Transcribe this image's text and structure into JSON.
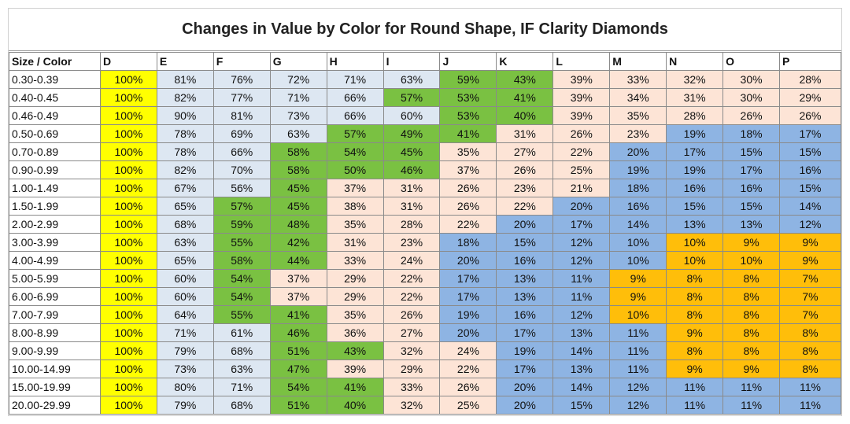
{
  "chart_data": {
    "type": "table",
    "title": "Changes in Value by Color for Round Shape, IF Clarity Diamonds",
    "header_corner": "Size / Color",
    "columns": [
      "D",
      "E",
      "F",
      "G",
      "H",
      "I",
      "J",
      "K",
      "L",
      "M",
      "N",
      "O",
      "P"
    ],
    "colors": {
      "yellow": "#ffff00",
      "lightblue": "#dde7f2",
      "green": "#7ac142",
      "peach": "#fde4d6",
      "blue": "#8eb4e3",
      "orange": "#ffbe0a"
    },
    "rows": [
      {
        "size": "0.30-0.39",
        "values": [
          "100%",
          "81%",
          "76%",
          "72%",
          "71%",
          "63%",
          "59%",
          "43%",
          "39%",
          "33%",
          "32%",
          "30%",
          "28%"
        ],
        "colors": [
          "yellow",
          "lightblue",
          "lightblue",
          "lightblue",
          "lightblue",
          "lightblue",
          "green",
          "green",
          "peach",
          "peach",
          "peach",
          "peach",
          "peach"
        ]
      },
      {
        "size": "0.40-0.45",
        "values": [
          "100%",
          "82%",
          "77%",
          "71%",
          "66%",
          "57%",
          "53%",
          "41%",
          "39%",
          "34%",
          "31%",
          "30%",
          "29%"
        ],
        "colors": [
          "yellow",
          "lightblue",
          "lightblue",
          "lightblue",
          "lightblue",
          "green",
          "green",
          "green",
          "peach",
          "peach",
          "peach",
          "peach",
          "peach"
        ]
      },
      {
        "size": "0.46-0.49",
        "values": [
          "100%",
          "90%",
          "81%",
          "73%",
          "66%",
          "60%",
          "53%",
          "40%",
          "39%",
          "35%",
          "28%",
          "26%",
          "26%"
        ],
        "colors": [
          "yellow",
          "lightblue",
          "lightblue",
          "lightblue",
          "lightblue",
          "lightblue",
          "green",
          "green",
          "peach",
          "peach",
          "peach",
          "peach",
          "peach"
        ]
      },
      {
        "size": "0.50-0.69",
        "values": [
          "100%",
          "78%",
          "69%",
          "63%",
          "57%",
          "49%",
          "41%",
          "31%",
          "26%",
          "23%",
          "19%",
          "18%",
          "17%"
        ],
        "colors": [
          "yellow",
          "lightblue",
          "lightblue",
          "lightblue",
          "green",
          "green",
          "green",
          "peach",
          "peach",
          "peach",
          "blue",
          "blue",
          "blue"
        ]
      },
      {
        "size": "0.70-0.89",
        "values": [
          "100%",
          "78%",
          "66%",
          "58%",
          "54%",
          "45%",
          "35%",
          "27%",
          "22%",
          "20%",
          "17%",
          "15%",
          "15%"
        ],
        "colors": [
          "yellow",
          "lightblue",
          "lightblue",
          "green",
          "green",
          "green",
          "peach",
          "peach",
          "peach",
          "blue",
          "blue",
          "blue",
          "blue"
        ]
      },
      {
        "size": "0.90-0.99",
        "values": [
          "100%",
          "82%",
          "70%",
          "58%",
          "50%",
          "46%",
          "37%",
          "26%",
          "25%",
          "19%",
          "19%",
          "17%",
          "16%"
        ],
        "colors": [
          "yellow",
          "lightblue",
          "lightblue",
          "green",
          "green",
          "green",
          "peach",
          "peach",
          "peach",
          "blue",
          "blue",
          "blue",
          "blue"
        ]
      },
      {
        "size": "1.00-1.49",
        "values": [
          "100%",
          "67%",
          "56%",
          "45%",
          "37%",
          "31%",
          "26%",
          "23%",
          "21%",
          "18%",
          "16%",
          "16%",
          "15%"
        ],
        "colors": [
          "yellow",
          "lightblue",
          "lightblue",
          "green",
          "peach",
          "peach",
          "peach",
          "peach",
          "peach",
          "blue",
          "blue",
          "blue",
          "blue"
        ]
      },
      {
        "size": "1.50-1.99",
        "values": [
          "100%",
          "65%",
          "57%",
          "45%",
          "38%",
          "31%",
          "26%",
          "22%",
          "20%",
          "16%",
          "15%",
          "15%",
          "14%"
        ],
        "colors": [
          "yellow",
          "lightblue",
          "green",
          "green",
          "peach",
          "peach",
          "peach",
          "peach",
          "blue",
          "blue",
          "blue",
          "blue",
          "blue"
        ]
      },
      {
        "size": "2.00-2.99",
        "values": [
          "100%",
          "68%",
          "59%",
          "48%",
          "35%",
          "28%",
          "22%",
          "20%",
          "17%",
          "14%",
          "13%",
          "13%",
          "12%"
        ],
        "colors": [
          "yellow",
          "lightblue",
          "green",
          "green",
          "peach",
          "peach",
          "peach",
          "blue",
          "blue",
          "blue",
          "blue",
          "blue",
          "blue"
        ]
      },
      {
        "size": "3.00-3.99",
        "values": [
          "100%",
          "63%",
          "55%",
          "42%",
          "31%",
          "23%",
          "18%",
          "15%",
          "12%",
          "10%",
          "10%",
          "9%",
          "9%"
        ],
        "colors": [
          "yellow",
          "lightblue",
          "green",
          "green",
          "peach",
          "peach",
          "blue",
          "blue",
          "blue",
          "blue",
          "orange",
          "orange",
          "orange"
        ]
      },
      {
        "size": "4.00-4.99",
        "values": [
          "100%",
          "65%",
          "58%",
          "44%",
          "33%",
          "24%",
          "20%",
          "16%",
          "12%",
          "10%",
          "10%",
          "10%",
          "9%"
        ],
        "colors": [
          "yellow",
          "lightblue",
          "green",
          "green",
          "peach",
          "peach",
          "blue",
          "blue",
          "blue",
          "blue",
          "orange",
          "orange",
          "orange"
        ]
      },
      {
        "size": "5.00-5.99",
        "values": [
          "100%",
          "60%",
          "54%",
          "37%",
          "29%",
          "22%",
          "17%",
          "13%",
          "11%",
          "9%",
          "8%",
          "8%",
          "7%"
        ],
        "colors": [
          "yellow",
          "lightblue",
          "green",
          "peach",
          "peach",
          "peach",
          "blue",
          "blue",
          "blue",
          "orange",
          "orange",
          "orange",
          "orange"
        ]
      },
      {
        "size": "6.00-6.99",
        "values": [
          "100%",
          "60%",
          "54%",
          "37%",
          "29%",
          "22%",
          "17%",
          "13%",
          "11%",
          "9%",
          "8%",
          "8%",
          "7%"
        ],
        "colors": [
          "yellow",
          "lightblue",
          "green",
          "peach",
          "peach",
          "peach",
          "blue",
          "blue",
          "blue",
          "orange",
          "orange",
          "orange",
          "orange"
        ]
      },
      {
        "size": "7.00-7.99",
        "values": [
          "100%",
          "64%",
          "55%",
          "41%",
          "35%",
          "26%",
          "19%",
          "16%",
          "12%",
          "10%",
          "8%",
          "8%",
          "7%"
        ],
        "colors": [
          "yellow",
          "lightblue",
          "green",
          "green",
          "peach",
          "peach",
          "blue",
          "blue",
          "blue",
          "orange",
          "orange",
          "orange",
          "orange"
        ]
      },
      {
        "size": "8.00-8.99",
        "values": [
          "100%",
          "71%",
          "61%",
          "46%",
          "36%",
          "27%",
          "20%",
          "17%",
          "13%",
          "11%",
          "9%",
          "8%",
          "8%"
        ],
        "colors": [
          "yellow",
          "lightblue",
          "lightblue",
          "green",
          "peach",
          "peach",
          "blue",
          "blue",
          "blue",
          "blue",
          "orange",
          "orange",
          "orange"
        ]
      },
      {
        "size": "9.00-9.99",
        "values": [
          "100%",
          "79%",
          "68%",
          "51%",
          "43%",
          "32%",
          "24%",
          "19%",
          "14%",
          "11%",
          "8%",
          "8%",
          "8%"
        ],
        "colors": [
          "yellow",
          "lightblue",
          "lightblue",
          "green",
          "green",
          "peach",
          "peach",
          "blue",
          "blue",
          "blue",
          "orange",
          "orange",
          "orange"
        ]
      },
      {
        "size": "10.00-14.99",
        "values": [
          "100%",
          "73%",
          "63%",
          "47%",
          "39%",
          "29%",
          "22%",
          "17%",
          "13%",
          "11%",
          "9%",
          "9%",
          "8%"
        ],
        "colors": [
          "yellow",
          "lightblue",
          "lightblue",
          "green",
          "peach",
          "peach",
          "peach",
          "blue",
          "blue",
          "blue",
          "orange",
          "orange",
          "orange"
        ]
      },
      {
        "size": "15.00-19.99",
        "values": [
          "100%",
          "80%",
          "71%",
          "54%",
          "41%",
          "33%",
          "26%",
          "20%",
          "14%",
          "12%",
          "11%",
          "11%",
          "11%"
        ],
        "colors": [
          "yellow",
          "lightblue",
          "lightblue",
          "green",
          "green",
          "peach",
          "peach",
          "blue",
          "blue",
          "blue",
          "blue",
          "blue",
          "blue"
        ]
      },
      {
        "size": "20.00-29.99",
        "values": [
          "100%",
          "79%",
          "68%",
          "51%",
          "40%",
          "32%",
          "25%",
          "20%",
          "15%",
          "12%",
          "11%",
          "11%",
          "11%"
        ],
        "colors": [
          "yellow",
          "lightblue",
          "lightblue",
          "green",
          "green",
          "peach",
          "peach",
          "blue",
          "blue",
          "blue",
          "blue",
          "blue",
          "blue"
        ]
      }
    ]
  }
}
